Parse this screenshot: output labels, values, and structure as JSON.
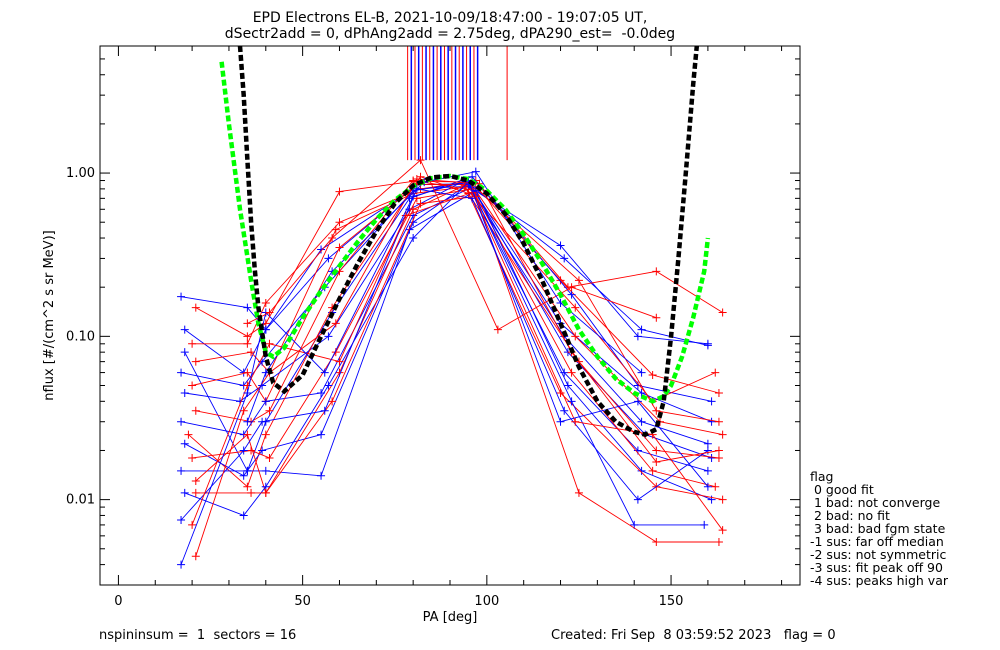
{
  "title": [
    "EPD Electrons EL-B, 2021-10-09/18:47:00 - 19:07:05 UT,",
    "dSectr2add = 0, dPhAng2add = 2.75deg, dPA290_est=  -0.0deg"
  ],
  "legend": {
    "title": "flag",
    "items": [
      " 0 good fit",
      " 1 bad: not converge",
      " 2 bad: no fit",
      " 3 bad: bad fgm state",
      "-1 sus: far off median",
      "-2 sus: not symmetric",
      "-3 sus: fit peak off 90",
      "-4 sus: peaks high var"
    ]
  },
  "footer": {
    "left": "nspininsum =  1  sectors = 16",
    "right": "Created: Fri Sep  8 03:59:52 2023   flag = 0"
  },
  "colors": {
    "blue": "#0000ff",
    "red": "#ff0000",
    "green": "#00ff00",
    "black": "#000000"
  },
  "chart_data": {
    "type": "line",
    "title": "EPD Electrons EL-B, 2021-10-09/18:47:00 - 19:07:05 UT, dSectr2add = 0, dPhAng2add = 2.75deg, dPA290_est=  -0.0deg",
    "xlabel": "PA [deg]",
    "ylabel": "nflux [#/(cm^2 s sr MeV)]",
    "xlim": [
      -5,
      185
    ],
    "ylim": [
      0.003,
      6
    ],
    "ylog": true,
    "xticks": [
      0,
      50,
      100,
      150
    ],
    "yticks": [
      0.01,
      0.1,
      1.0
    ],
    "ytick_labels": [
      "0.01",
      "0.10",
      "1.00"
    ],
    "grid": false,
    "series": [
      {
        "color": "blue",
        "x": [
          17,
          35,
          40,
          55,
          80,
          95,
          120,
          141,
          160
        ],
        "y": [
          0.175,
          0.15,
          0.11,
          0.34,
          0.8,
          0.83,
          0.36,
          0.1,
          0.09
        ]
      },
      {
        "color": "red",
        "x": [
          21,
          35,
          40,
          60,
          80,
          96,
          120,
          145,
          163
        ],
        "y": [
          0.15,
          0.1,
          0.12,
          0.77,
          0.89,
          0.88,
          0.22,
          0.058,
          0.045
        ]
      },
      {
        "color": "blue",
        "x": [
          18,
          34,
          40,
          57,
          81,
          95,
          121,
          142,
          160
        ],
        "y": [
          0.11,
          0.06,
          0.11,
          0.3,
          0.85,
          0.86,
          0.3,
          0.11,
          0.088
        ]
      },
      {
        "color": "red",
        "x": [
          20,
          35,
          40,
          60,
          82,
          97,
          122,
          146,
          164
        ],
        "y": [
          0.09,
          0.09,
          0.16,
          0.5,
          0.8,
          0.9,
          0.2,
          0.25,
          0.14
        ]
      },
      {
        "color": "blue",
        "x": [
          18,
          35,
          40,
          58,
          79,
          96,
          123,
          141,
          161
        ],
        "y": [
          0.08,
          0.015,
          0.03,
          0.14,
          0.7,
          0.95,
          0.18,
          0.05,
          0.04
        ]
      },
      {
        "color": "red",
        "x": [
          21,
          36,
          41,
          59,
          80,
          94,
          124,
          145,
          162
        ],
        "y": [
          0.07,
          0.08,
          0.06,
          0.45,
          0.75,
          0.82,
          0.15,
          0.04,
          0.06
        ]
      },
      {
        "color": "blue",
        "x": [
          17,
          34,
          39,
          56,
          80,
          95,
          120,
          142,
          161
        ],
        "y": [
          0.06,
          0.05,
          0.07,
          0.2,
          0.78,
          0.88,
          0.12,
          0.045,
          0.03
        ]
      },
      {
        "color": "red",
        "x": [
          20,
          35,
          40,
          60,
          81,
          96,
          125,
          146,
          163
        ],
        "y": [
          0.05,
          0.06,
          0.04,
          0.35,
          0.85,
          0.85,
          0.22,
          0.035,
          0.03
        ]
      },
      {
        "color": "blue",
        "x": [
          18,
          33,
          39,
          57,
          79,
          94,
          121,
          142,
          160
        ],
        "y": [
          0.045,
          0.04,
          0.05,
          0.1,
          0.6,
          0.9,
          0.1,
          0.03,
          0.022
        ]
      },
      {
        "color": "red",
        "x": [
          21,
          36,
          41,
          60,
          80,
          97,
          124,
          147,
          164
        ],
        "y": [
          0.035,
          0.03,
          0.035,
          0.25,
          0.9,
          0.78,
          0.1,
          0.03,
          0.025
        ]
      },
      {
        "color": "blue",
        "x": [
          17,
          34,
          40,
          55,
          80,
          96,
          122,
          143,
          161
        ],
        "y": [
          0.03,
          0.025,
          0.04,
          0.045,
          0.55,
          0.82,
          0.08,
          0.025,
          0.018
        ]
      },
      {
        "color": "red",
        "x": [
          19,
          35,
          40,
          58,
          82,
          95,
          125,
          146,
          163
        ],
        "y": [
          0.025,
          0.012,
          0.025,
          0.15,
          0.95,
          0.75,
          0.07,
          0.02,
          0.018
        ]
      },
      {
        "color": "blue",
        "x": [
          18,
          34,
          39,
          55,
          80,
          95,
          121,
          141,
          160
        ],
        "y": [
          0.022,
          0.014,
          0.02,
          0.025,
          0.5,
          0.86,
          0.06,
          0.02,
          0.015
        ]
      },
      {
        "color": "red",
        "x": [
          20,
          36,
          41,
          59,
          81,
          96,
          123,
          145,
          162
        ],
        "y": [
          0.018,
          0.02,
          0.018,
          0.08,
          0.7,
          0.8,
          0.06,
          0.015,
          0.012
        ]
      },
      {
        "color": "blue",
        "x": [
          17,
          35,
          40,
          55,
          79,
          97,
          122,
          142,
          161
        ],
        "y": [
          0.015,
          0.015,
          0.015,
          0.014,
          0.45,
          0.78,
          0.05,
          0.015,
          0.01
        ]
      },
      {
        "color": "red",
        "x": [
          21,
          35,
          40,
          60,
          80,
          94,
          120,
          146,
          164
        ],
        "y": [
          0.013,
          0.025,
          0.011,
          0.06,
          0.6,
          0.84,
          0.045,
          0.012,
          0.01
        ]
      },
      {
        "color": "blue",
        "x": [
          18,
          34,
          40,
          57,
          80,
          95,
          123,
          140,
          159
        ],
        "y": [
          0.011,
          0.008,
          0.012,
          0.05,
          0.4,
          0.88,
          0.04,
          0.007,
          0.007
        ]
      },
      {
        "color": "red",
        "x": [
          21,
          36,
          40,
          58,
          82,
          97,
          125,
          146,
          163
        ],
        "y": [
          0.011,
          0.011,
          0.011,
          0.04,
          0.65,
          0.72,
          0.011,
          0.0055,
          0.0055
        ]
      },
      {
        "color": "blue",
        "x": [
          17,
          34,
          39,
          56,
          81,
          96,
          121,
          141,
          160
        ],
        "y": [
          0.0075,
          0.02,
          0.03,
          0.035,
          0.8,
          0.7,
          0.035,
          0.01,
          0.02
        ]
      },
      {
        "color": "red",
        "x": [
          20,
          35,
          41,
          60,
          78,
          96,
          124,
          145,
          164
        ],
        "y": [
          0.007,
          0.05,
          0.09,
          0.07,
          0.55,
          0.76,
          0.03,
          0.025,
          0.0065
        ]
      },
      {
        "color": "blue",
        "x": [
          17,
          35,
          40,
          56,
          80,
          95,
          120,
          141,
          160
        ],
        "y": [
          0.004,
          0.045,
          0.14,
          0.06,
          0.72,
          0.9,
          0.03,
          0.04,
          0.012
        ]
      },
      {
        "color": "red",
        "x": [
          21,
          34,
          41,
          59,
          81,
          98,
          123,
          146,
          163
        ],
        "y": [
          0.0045,
          0.035,
          0.06,
          0.12,
          0.92,
          0.86,
          0.08,
          0.017,
          0.02
        ]
      },
      {
        "color": "red",
        "x": [
          35,
          41,
          58,
          82,
          103,
          123,
          146
        ],
        "y": [
          0.12,
          0.14,
          0.4,
          1.2,
          0.11,
          0.2,
          0.13
        ]
      },
      {
        "color": "blue",
        "x": [
          35,
          40,
          58,
          83,
          97,
          120,
          142
        ],
        "y": [
          0.03,
          0.06,
          0.25,
          0.88,
          1.02,
          0.16,
          0.06
        ]
      }
    ],
    "fits": [
      {
        "name": "green dashed fit",
        "color": "green",
        "x": [
          28,
          30,
          33,
          36,
          38,
          40,
          42,
          45,
          50,
          55,
          60,
          65,
          70,
          75,
          80,
          85,
          90,
          95,
          100,
          105,
          110,
          115,
          120,
          125,
          130,
          135,
          140,
          145,
          148,
          150,
          153,
          156,
          159,
          160
        ],
        "y": [
          4.8,
          2.0,
          0.6,
          0.22,
          0.12,
          0.08,
          0.075,
          0.085,
          0.13,
          0.19,
          0.27,
          0.38,
          0.52,
          0.68,
          0.83,
          0.93,
          0.96,
          0.92,
          0.78,
          0.6,
          0.42,
          0.28,
          0.18,
          0.11,
          0.075,
          0.055,
          0.045,
          0.04,
          0.043,
          0.05,
          0.075,
          0.13,
          0.25,
          0.4
        ]
      },
      {
        "name": "black dashed fit",
        "color": "black",
        "x": [
          33,
          34,
          35,
          36,
          37,
          38,
          40,
          42,
          45,
          50,
          55,
          60,
          65,
          70,
          75,
          80,
          85,
          90,
          95,
          100,
          105,
          110,
          115,
          120,
          125,
          130,
          135,
          140,
          143,
          146,
          148,
          150,
          152,
          154,
          156,
          157
        ],
        "y": [
          6,
          3.0,
          1.2,
          0.5,
          0.26,
          0.15,
          0.075,
          0.052,
          0.046,
          0.058,
          0.1,
          0.17,
          0.28,
          0.44,
          0.65,
          0.84,
          0.94,
          0.96,
          0.9,
          0.75,
          0.56,
          0.37,
          0.22,
          0.12,
          0.065,
          0.04,
          0.03,
          0.026,
          0.025,
          0.027,
          0.04,
          0.1,
          0.3,
          1.0,
          3.5,
          6
        ]
      }
    ],
    "peak_markers": {
      "red_x": [
        78.5,
        80.5,
        82.5,
        84.5,
        86.5,
        88.5,
        90.5,
        92.5,
        94.5,
        96.5,
        105.5
      ],
      "blue_x": [
        79.5,
        81.5,
        83.5,
        85.5,
        87.5,
        89.5,
        91.5,
        93.5,
        95.5,
        97.5
      ],
      "y_range": [
        1.2,
        6
      ]
    }
  }
}
